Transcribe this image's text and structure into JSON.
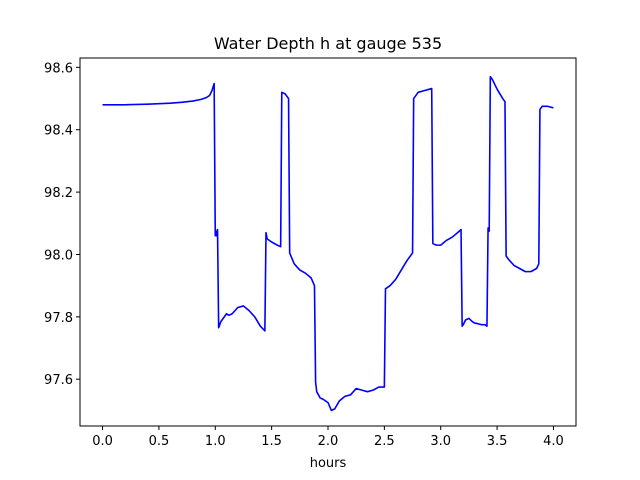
{
  "chart_data": {
    "type": "line",
    "title": "Water Depth h at gauge 535",
    "xlabel": "hours",
    "ylabel": "",
    "xlim": [
      -0.2,
      4.2
    ],
    "ylim": [
      97.45,
      98.63
    ],
    "xticks": [
      0.0,
      0.5,
      1.0,
      1.5,
      2.0,
      2.5,
      3.0,
      3.5,
      4.0
    ],
    "xtick_labels": [
      "0.0",
      "0.5",
      "1.0",
      "1.5",
      "2.0",
      "2.5",
      "3.0",
      "3.5",
      "4.0"
    ],
    "yticks": [
      97.6,
      97.8,
      98.0,
      98.2,
      98.4,
      98.6
    ],
    "ytick_labels": [
      "97.6",
      "97.8",
      "98.0",
      "98.2",
      "98.4",
      "98.6"
    ],
    "grid": false,
    "series": [
      {
        "color": "#0000ff",
        "x": [
          0.0,
          0.2,
          0.4,
          0.6,
          0.7,
          0.8,
          0.87,
          0.92,
          0.95,
          0.97,
          0.99,
          1.0,
          1.005,
          1.01,
          1.02,
          1.03,
          1.05,
          1.08,
          1.1,
          1.12,
          1.15,
          1.2,
          1.25,
          1.3,
          1.35,
          1.4,
          1.44,
          1.45,
          1.46,
          1.5,
          1.55,
          1.58,
          1.59,
          1.62,
          1.65,
          1.66,
          1.7,
          1.75,
          1.8,
          1.85,
          1.88,
          1.89,
          1.9,
          1.93,
          1.96,
          2.0,
          2.03,
          2.06,
          2.1,
          2.15,
          2.2,
          2.25,
          2.3,
          2.35,
          2.4,
          2.45,
          2.5,
          2.51,
          2.55,
          2.6,
          2.65,
          2.7,
          2.75,
          2.76,
          2.8,
          2.85,
          2.9,
          2.92,
          2.93,
          2.96,
          3.0,
          3.05,
          3.1,
          3.15,
          3.18,
          3.19,
          3.2,
          3.22,
          3.25,
          3.28,
          3.3,
          3.33,
          3.36,
          3.39,
          3.41,
          3.42,
          3.43,
          3.44,
          3.46,
          3.5,
          3.55,
          3.57,
          3.58,
          3.6,
          3.65,
          3.7,
          3.75,
          3.8,
          3.85,
          3.87,
          3.88,
          3.9,
          3.95,
          4.0
        ],
        "y": [
          98.48,
          98.48,
          98.482,
          98.485,
          98.488,
          98.492,
          98.497,
          98.503,
          98.51,
          98.525,
          98.548,
          98.06,
          98.075,
          98.06,
          98.08,
          97.765,
          97.785,
          97.8,
          97.81,
          97.805,
          97.81,
          97.83,
          97.835,
          97.82,
          97.8,
          97.77,
          97.755,
          98.07,
          98.05,
          98.04,
          98.03,
          98.025,
          98.52,
          98.515,
          98.5,
          98.005,
          97.97,
          97.95,
          97.94,
          97.925,
          97.9,
          97.59,
          97.56,
          97.54,
          97.535,
          97.525,
          97.5,
          97.505,
          97.53,
          97.545,
          97.55,
          97.57,
          97.565,
          97.56,
          97.565,
          97.575,
          97.575,
          97.89,
          97.9,
          97.92,
          97.95,
          97.98,
          98.005,
          98.5,
          98.52,
          98.525,
          98.53,
          98.532,
          98.035,
          98.03,
          98.03,
          98.045,
          98.055,
          98.07,
          98.08,
          97.77,
          97.775,
          97.79,
          97.795,
          97.785,
          97.78,
          97.778,
          97.775,
          97.775,
          97.77,
          98.085,
          98.075,
          98.57,
          98.56,
          98.53,
          98.5,
          98.49,
          97.995,
          97.985,
          97.965,
          97.955,
          97.945,
          97.945,
          97.955,
          97.97,
          98.465,
          98.475,
          98.475,
          98.47
        ]
      }
    ]
  }
}
